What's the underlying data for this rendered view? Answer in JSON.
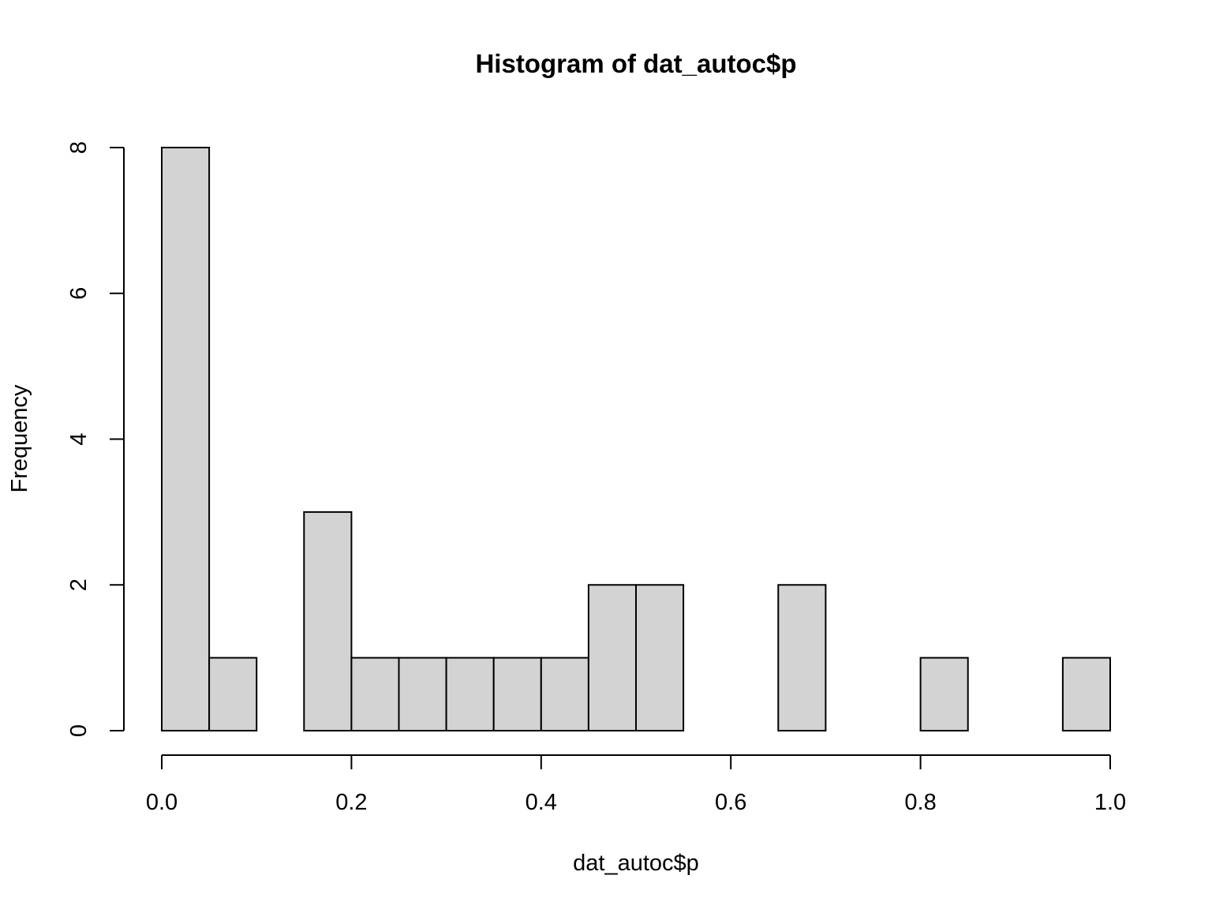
{
  "chart_data": {
    "type": "bar",
    "subtype": "histogram",
    "title": "Histogram of dat_autoc$p",
    "xlabel": "dat_autoc$p",
    "ylabel": "Frequency",
    "bin_width": 0.05,
    "bins": [
      {
        "start": 0.0,
        "end": 0.05,
        "count": 8
      },
      {
        "start": 0.05,
        "end": 0.1,
        "count": 1
      },
      {
        "start": 0.1,
        "end": 0.15,
        "count": 0
      },
      {
        "start": 0.15,
        "end": 0.2,
        "count": 3
      },
      {
        "start": 0.2,
        "end": 0.25,
        "count": 1
      },
      {
        "start": 0.25,
        "end": 0.3,
        "count": 1
      },
      {
        "start": 0.3,
        "end": 0.35,
        "count": 1
      },
      {
        "start": 0.35,
        "end": 0.4,
        "count": 1
      },
      {
        "start": 0.4,
        "end": 0.45,
        "count": 1
      },
      {
        "start": 0.45,
        "end": 0.5,
        "count": 2
      },
      {
        "start": 0.5,
        "end": 0.55,
        "count": 2
      },
      {
        "start": 0.55,
        "end": 0.6,
        "count": 0
      },
      {
        "start": 0.6,
        "end": 0.65,
        "count": 0
      },
      {
        "start": 0.65,
        "end": 0.7,
        "count": 2
      },
      {
        "start": 0.7,
        "end": 0.75,
        "count": 0
      },
      {
        "start": 0.75,
        "end": 0.8,
        "count": 0
      },
      {
        "start": 0.8,
        "end": 0.85,
        "count": 1
      },
      {
        "start": 0.85,
        "end": 0.9,
        "count": 0
      },
      {
        "start": 0.9,
        "end": 0.95,
        "count": 0
      },
      {
        "start": 0.95,
        "end": 1.0,
        "count": 1
      }
    ],
    "xlim": [
      0.0,
      1.0
    ],
    "ylim": [
      0,
      8
    ],
    "x_ticks": [
      0.0,
      0.2,
      0.4,
      0.6,
      0.8,
      1.0
    ],
    "x_tick_labels": [
      "0.0",
      "0.2",
      "0.4",
      "0.6",
      "0.8",
      "1.0"
    ],
    "y_ticks": [
      0,
      2,
      4,
      6,
      8
    ],
    "y_tick_labels": [
      "0",
      "2",
      "4",
      "6",
      "8"
    ],
    "grid": false,
    "legend": "none",
    "bar_fill": "#d3d3d3",
    "bar_stroke": "#000000"
  }
}
